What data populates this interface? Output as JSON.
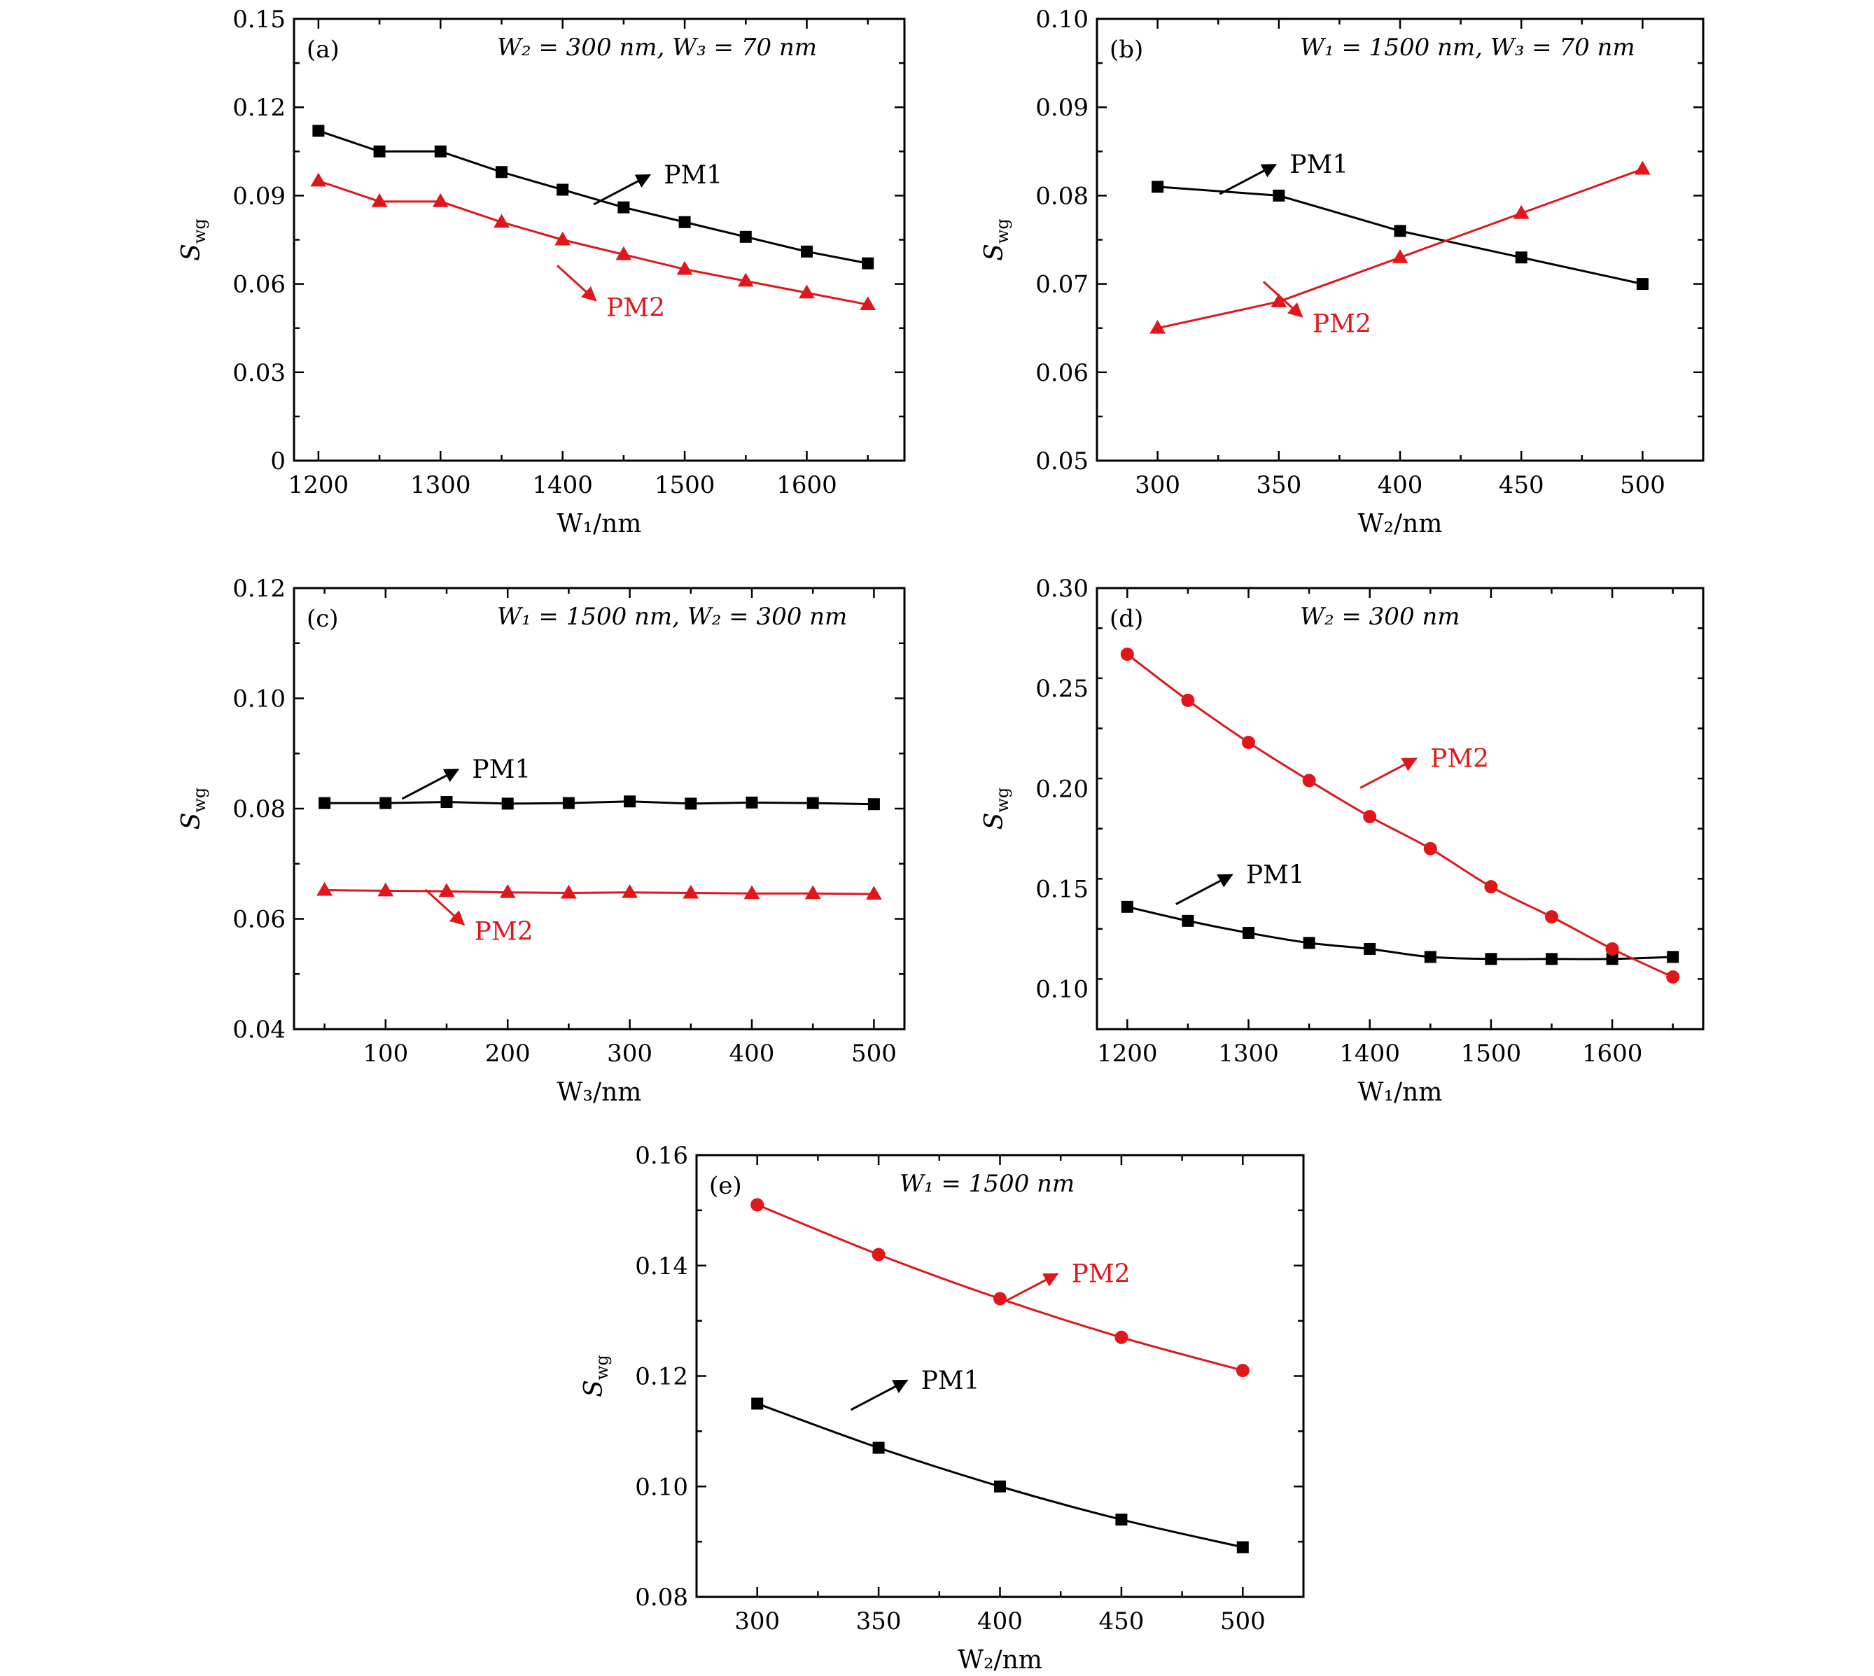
{
  "colors": {
    "PM1": "#000000",
    "PM2": "#e0161b"
  },
  "chart_data": [
    {
      "type": "line",
      "panel": "(a)",
      "condition": "W₂ = 300 nm, W₃ = 70 nm",
      "xlabel": "W₁/nm",
      "ylabel": "Swg",
      "xlim": [
        1180,
        1680
      ],
      "ylim": [
        0,
        0.15
      ],
      "xticks": [
        1200,
        1300,
        1400,
        1500,
        1600
      ],
      "xtick_labels": [
        "1200",
        "1300",
        "1400",
        "1500",
        "1600"
      ],
      "yticks": [
        0,
        0.03,
        0.06,
        0.09,
        0.12,
        0.15
      ],
      "ytick_labels": [
        "0",
        "0.03",
        "0.06",
        "0.09",
        "0.12",
        "0.15"
      ],
      "x": [
        1200,
        1250,
        1300,
        1350,
        1400,
        1450,
        1500,
        1550,
        1600,
        1650
      ],
      "series": [
        {
          "name": "PM1",
          "marker": "square",
          "values": [
            0.112,
            0.105,
            0.105,
            0.098,
            0.092,
            0.086,
            0.081,
            0.076,
            0.071,
            0.067
          ]
        },
        {
          "name": "PM2",
          "marker": "triangle",
          "values": [
            0.095,
            0.088,
            0.088,
            0.081,
            0.075,
            0.07,
            0.065,
            0.061,
            0.057,
            0.053
          ]
        }
      ],
      "annotations": [
        {
          "text": "PM1",
          "series": "PM1",
          "x": 1480,
          "y": 0.097
        },
        {
          "text": "PM2",
          "series": "PM2",
          "x": 1430,
          "y": 0.052
        }
      ]
    },
    {
      "type": "line",
      "panel": "(b)",
      "condition": "W₁ = 1500 nm, W₃ = 70 nm",
      "xlabel": "W₂/nm",
      "ylabel": "Swg",
      "xlim": [
        275,
        525
      ],
      "ylim": [
        0.05,
        0.1
      ],
      "xticks": [
        300,
        350,
        400,
        450,
        500
      ],
      "xtick_labels": [
        "300",
        "350",
        "400",
        "450",
        "500"
      ],
      "yticks": [
        0.05,
        0.06,
        0.07,
        0.08,
        0.09,
        0.1
      ],
      "ytick_labels": [
        "0.05",
        "0.06",
        "0.07",
        "0.08",
        "0.09",
        "0.10"
      ],
      "x": [
        300,
        350,
        400,
        450,
        500
      ],
      "series": [
        {
          "name": "PM1",
          "marker": "square",
          "values": [
            0.081,
            0.08,
            0.076,
            0.073,
            0.07
          ]
        },
        {
          "name": "PM2",
          "marker": "triangle",
          "values": [
            0.065,
            0.068,
            0.073,
            0.078,
            0.083
          ]
        }
      ],
      "annotations": [
        {
          "text": "PM1",
          "series": "PM1",
          "x": 353,
          "y": 0.0835
        },
        {
          "text": "PM2",
          "series": "PM2",
          "x": 361,
          "y": 0.0655
        }
      ]
    },
    {
      "type": "line",
      "panel": "(c)",
      "condition": "W₁ = 1500 nm, W₂ = 300 nm",
      "xlabel": "W₃/nm",
      "ylabel": "Swg",
      "xlim": [
        25,
        525
      ],
      "ylim": [
        0.04,
        0.12
      ],
      "xticks": [
        100,
        200,
        300,
        400,
        500
      ],
      "xtick_labels": [
        "100",
        "200",
        "300",
        "400",
        "500"
      ],
      "yticks": [
        0.04,
        0.06,
        0.08,
        0.1,
        0.12
      ],
      "ytick_labels": [
        "0.04",
        "0.06",
        "0.08",
        "0.10",
        "0.12"
      ],
      "x": [
        50,
        100,
        150,
        200,
        250,
        300,
        350,
        400,
        450,
        500
      ],
      "series": [
        {
          "name": "PM1",
          "marker": "square",
          "values": [
            0.081,
            0.081,
            0.0812,
            0.0809,
            0.081,
            0.0813,
            0.0809,
            0.0811,
            0.081,
            0.0808
          ]
        },
        {
          "name": "PM2",
          "marker": "triangle",
          "values": [
            0.0652,
            0.0651,
            0.065,
            0.0648,
            0.0647,
            0.0648,
            0.0647,
            0.0646,
            0.0646,
            0.0645
          ]
        }
      ],
      "annotations": [
        {
          "text": "PM1",
          "series": "PM1",
          "x": 168,
          "y": 0.0871
        },
        {
          "text": "PM2",
          "series": "PM2",
          "x": 167,
          "y": 0.0577
        }
      ]
    },
    {
      "type": "line",
      "panel": "(d)",
      "condition": "W₂ = 300 nm",
      "xlabel": "W₁/nm",
      "ylabel": "Swg",
      "xlim": [
        1175,
        1675
      ],
      "ylim": [
        0.08,
        0.3
      ],
      "xticks": [
        1200,
        1300,
        1400,
        1500,
        1600
      ],
      "xtick_labels": [
        "1200",
        "1300",
        "1400",
        "1500",
        "1600"
      ],
      "yticks": [
        0.1,
        0.15,
        0.2,
        0.25,
        0.3
      ],
      "ytick_labels": [
        "0.10",
        "0.15",
        "0.20",
        "0.25",
        "0.30"
      ],
      "x": [
        1200,
        1250,
        1300,
        1350,
        1400,
        1450,
        1500,
        1550,
        1600,
        1650
      ],
      "series": [
        {
          "name": "PM1",
          "marker": "square",
          "values": [
            0.141,
            0.134,
            0.128,
            0.123,
            0.12,
            0.116,
            0.115,
            0.115,
            0.115,
            0.116
          ]
        },
        {
          "name": "PM2",
          "marker": "circle",
          "values": [
            0.267,
            0.244,
            0.223,
            0.204,
            0.186,
            0.17,
            0.151,
            0.136,
            0.12,
            0.106
          ]
        }
      ],
      "annotations": [
        {
          "text": "PM1",
          "series": "PM1",
          "x": 1295,
          "y": 0.157
        },
        {
          "text": "PM2",
          "series": "PM2",
          "x": 1447,
          "y": 0.215
        }
      ]
    },
    {
      "type": "line",
      "panel": "(e)",
      "condition": "W₁ = 1500 nm",
      "xlabel": "W₂/nm",
      "ylabel": "Swg",
      "xlim": [
        275,
        525
      ],
      "ylim": [
        0.08,
        0.16
      ],
      "xticks": [
        300,
        350,
        400,
        450,
        500
      ],
      "xtick_labels": [
        "300",
        "350",
        "400",
        "450",
        "500"
      ],
      "yticks": [
        0.08,
        0.1,
        0.12,
        0.14,
        0.16
      ],
      "ytick_labels": [
        "0.08",
        "0.10",
        "0.12",
        "0.14",
        "0.16"
      ],
      "x": [
        300,
        350,
        400,
        450,
        500
      ],
      "series": [
        {
          "name": "PM1",
          "marker": "square",
          "values": [
            0.115,
            0.107,
            0.1,
            0.094,
            0.089
          ]
        },
        {
          "name": "PM2",
          "marker": "circle",
          "values": [
            0.151,
            0.142,
            0.134,
            0.127,
            0.121
          ]
        }
      ],
      "annotations": [
        {
          "text": "PM1",
          "series": "PM1",
          "x": 366,
          "y": 0.1192
        },
        {
          "text": "PM2",
          "series": "PM2",
          "x": 428,
          "y": 0.1385
        }
      ]
    }
  ]
}
